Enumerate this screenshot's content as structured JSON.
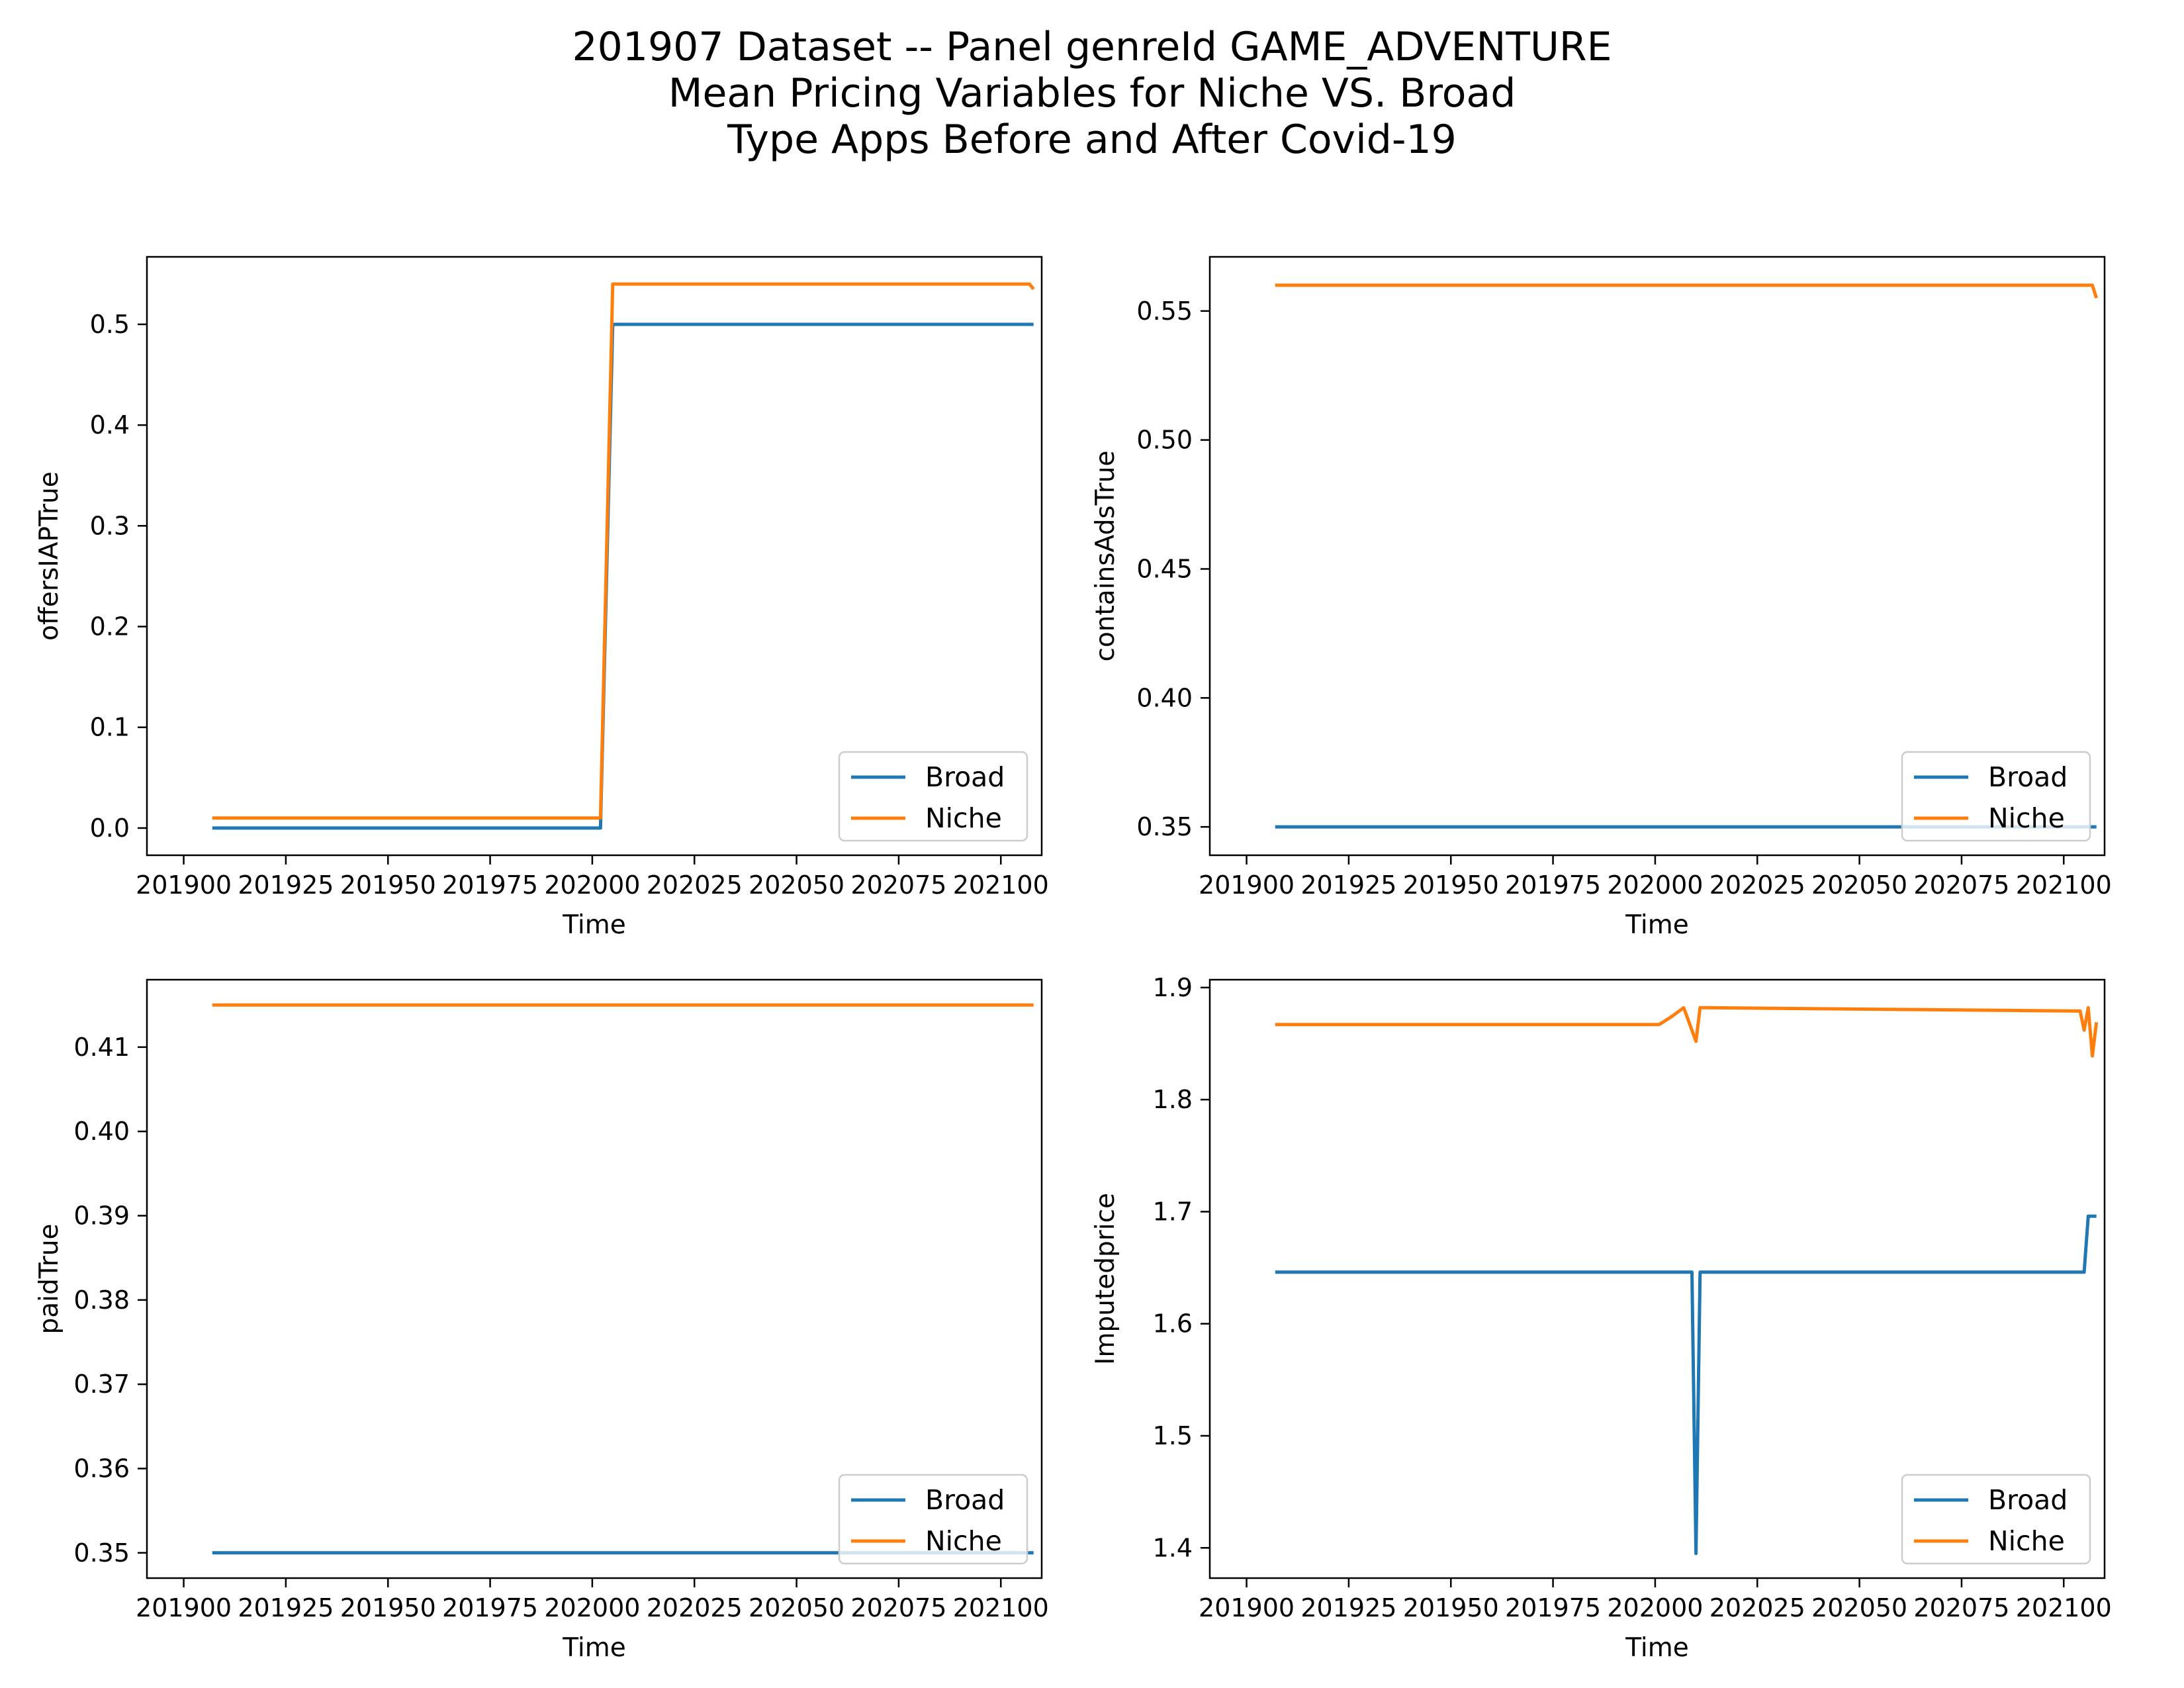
{
  "figure": {
    "title_lines": [
      "201907 Dataset -- Panel genreId GAME_ADVENTURE",
      "Mean Pricing Variables for Niche VS. Broad",
      "Type Apps Before and After Covid-19"
    ]
  },
  "colors": {
    "Broad": "#1f77b4",
    "Niche": "#ff7f0e"
  },
  "chart_data": [
    {
      "type": "line",
      "panel": "top-left",
      "xlabel": "Time",
      "ylabel": "offersIAPTrue",
      "xlim": [
        201891,
        202110
      ],
      "ylim": [
        -0.027,
        0.567
      ],
      "xticks": [
        201900,
        201925,
        201950,
        201975,
        202000,
        202025,
        202050,
        202075,
        202100
      ],
      "xtick_labels": [
        "201900",
        "201925",
        "201950",
        "201975",
        "202000",
        "202025",
        "202050",
        "202075",
        "202100"
      ],
      "yticks": [
        0.0,
        0.1,
        0.2,
        0.3,
        0.4,
        0.5
      ],
      "ytick_labels": [
        "0.0",
        "0.1",
        "0.2",
        "0.3",
        "0.4",
        "0.5"
      ],
      "legend": "lower-right",
      "series": [
        {
          "name": "Broad",
          "x": [
            201907,
            202002,
            202005,
            202108
          ],
          "y": [
            0.0,
            0.0,
            0.5,
            0.5
          ]
        },
        {
          "name": "Niche",
          "x": [
            201907,
            202002,
            202005,
            202107,
            202108
          ],
          "y": [
            0.01,
            0.01,
            0.54,
            0.54,
            0.535
          ]
        }
      ]
    },
    {
      "type": "line",
      "panel": "top-right",
      "xlabel": "Time",
      "ylabel": "containsAdsTrue",
      "xlim": [
        201891,
        202110
      ],
      "ylim": [
        0.339,
        0.571
      ],
      "xticks": [
        201900,
        201925,
        201950,
        201975,
        202000,
        202025,
        202050,
        202075,
        202100
      ],
      "xtick_labels": [
        "201900",
        "201925",
        "201950",
        "201975",
        "202000",
        "202025",
        "202050",
        "202075",
        "202100"
      ],
      "yticks": [
        0.35,
        0.4,
        0.45,
        0.5,
        0.55
      ],
      "ytick_labels": [
        "0.35",
        "0.40",
        "0.45",
        "0.50",
        "0.55"
      ],
      "legend": "lower-right",
      "series": [
        {
          "name": "Broad",
          "x": [
            201907,
            202108
          ],
          "y": [
            0.35,
            0.35
          ]
        },
        {
          "name": "Niche",
          "x": [
            201907,
            202107,
            202108
          ],
          "y": [
            0.56,
            0.56,
            0.555
          ]
        }
      ]
    },
    {
      "type": "line",
      "panel": "bottom-left",
      "xlabel": "Time",
      "ylabel": "paidTrue",
      "xlim": [
        201891,
        202110
      ],
      "ylim": [
        0.347,
        0.418
      ],
      "xticks": [
        201900,
        201925,
        201950,
        201975,
        202000,
        202025,
        202050,
        202075,
        202100
      ],
      "xtick_labels": [
        "201900",
        "201925",
        "201950",
        "201975",
        "202000",
        "202025",
        "202050",
        "202075",
        "202100"
      ],
      "yticks": [
        0.35,
        0.36,
        0.37,
        0.38,
        0.39,
        0.4,
        0.41
      ],
      "ytick_labels": [
        "0.35",
        "0.36",
        "0.37",
        "0.38",
        "0.39",
        "0.40",
        "0.41"
      ],
      "legend": "lower-right",
      "series": [
        {
          "name": "Broad",
          "x": [
            201907,
            202108
          ],
          "y": [
            0.35,
            0.35
          ]
        },
        {
          "name": "Niche",
          "x": [
            201907,
            202108
          ],
          "y": [
            0.415,
            0.415
          ]
        }
      ]
    },
    {
      "type": "line",
      "panel": "bottom-right",
      "xlabel": "Time",
      "ylabel": "Imputedprice",
      "xlim": [
        201891,
        202110
      ],
      "ylim": [
        1.373,
        1.907
      ],
      "xticks": [
        201900,
        201925,
        201950,
        201975,
        202000,
        202025,
        202050,
        202075,
        202100
      ],
      "xtick_labels": [
        "201900",
        "201925",
        "201950",
        "201975",
        "202000",
        "202025",
        "202050",
        "202075",
        "202100"
      ],
      "yticks": [
        1.4,
        1.5,
        1.6,
        1.7,
        1.8,
        1.9
      ],
      "ytick_labels": [
        "1.4",
        "1.5",
        "1.6",
        "1.7",
        "1.8",
        "1.9"
      ],
      "legend": "lower-right",
      "series": [
        {
          "name": "Broad",
          "x": [
            201907,
            202001,
            202009,
            202010,
            202011,
            202012,
            202105,
            202106,
            202107,
            202108
          ],
          "y": [
            1.646,
            1.646,
            1.646,
            1.395,
            1.646,
            1.646,
            1.646,
            1.696,
            1.696,
            1.696
          ]
        },
        {
          "name": "Niche",
          "x": [
            201907,
            202001,
            202004,
            202007,
            202010,
            202011,
            202012,
            202104,
            202105,
            202106,
            202107,
            202108
          ],
          "y": [
            1.867,
            1.867,
            1.874,
            1.882,
            1.852,
            1.882,
            1.882,
            1.879,
            1.862,
            1.882,
            1.839,
            1.869
          ]
        }
      ]
    }
  ]
}
